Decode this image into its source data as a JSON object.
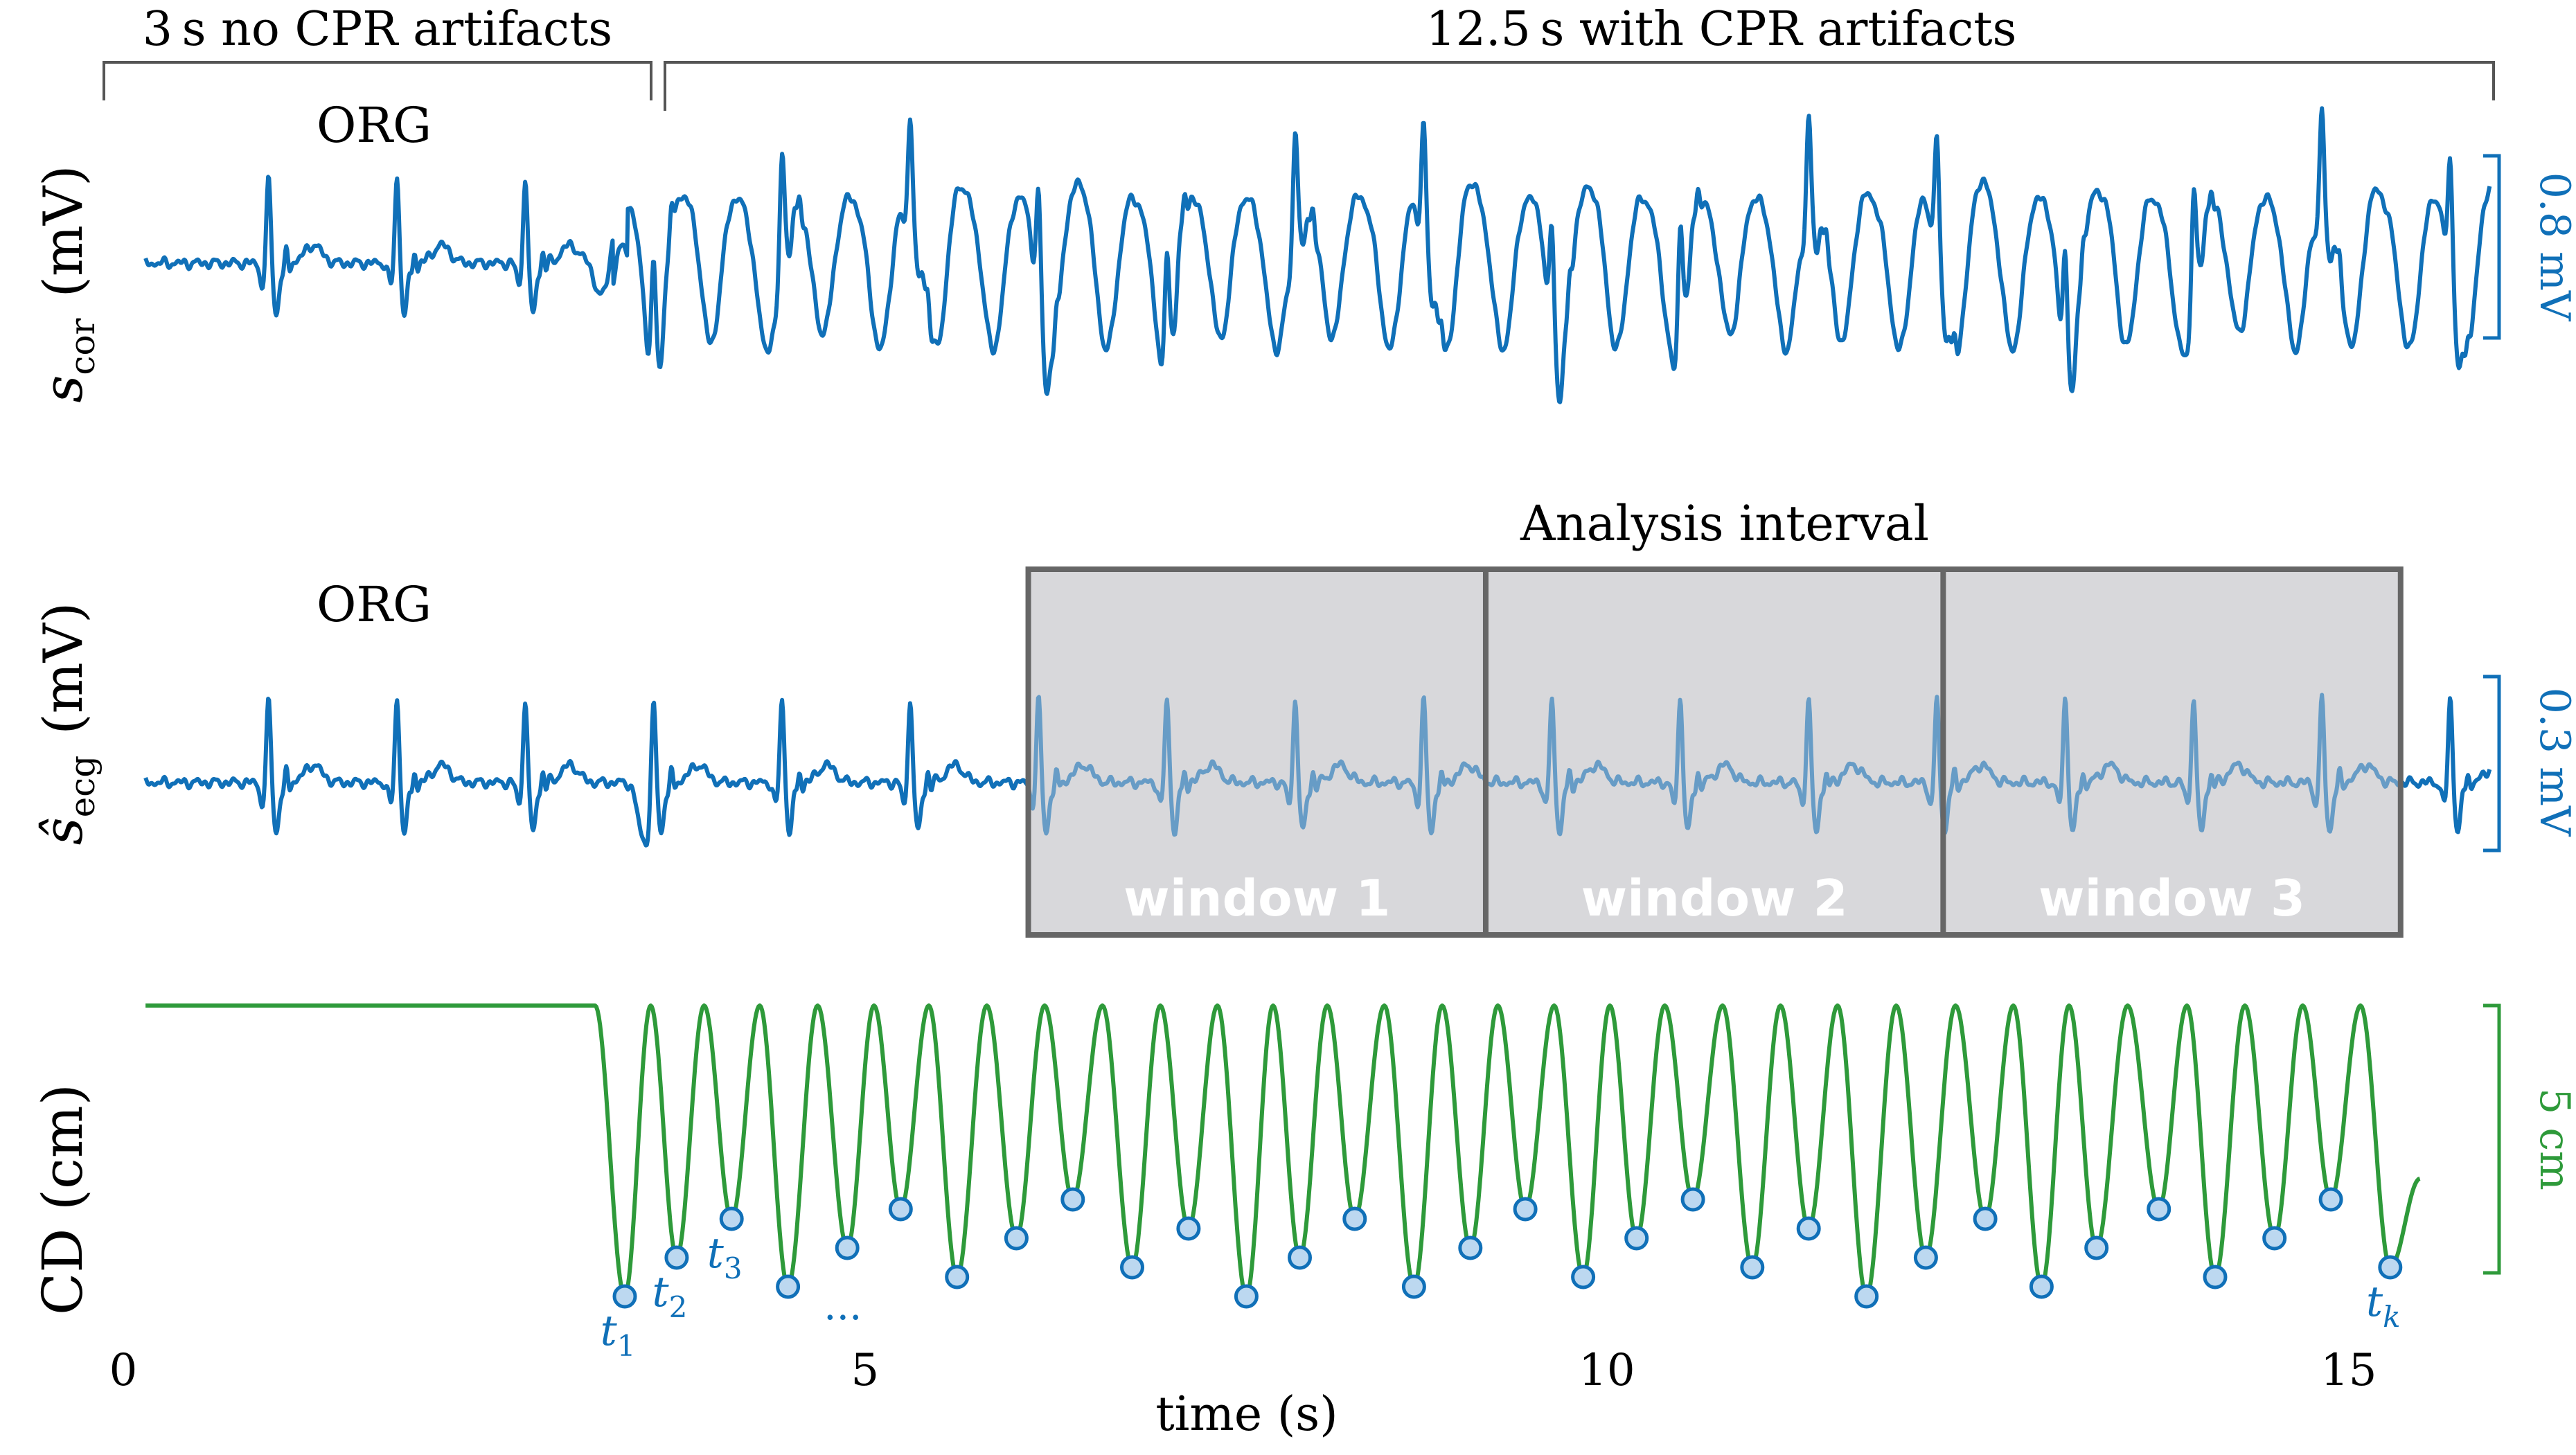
{
  "chart_data": {
    "type": "line",
    "segment_labels": {
      "pre": "3 s no CPR artifacts",
      "post": "12.5 s with CPR artifacts"
    },
    "panels": [
      {
        "id": "scor",
        "ylabel": "s",
        "ylabel_sub": "cor",
        "ylabel_unit": "(mV)",
        "rhythm_label": "ORG",
        "scale_label": "0.8 mV",
        "color": "#1070b8"
      },
      {
        "id": "secg",
        "ylabel": "ŝ",
        "ylabel_sub": "ecg",
        "ylabel_unit": "(mV)",
        "rhythm_label": "ORG",
        "scale_label": "0.3 mV",
        "color": "#1070b8"
      },
      {
        "id": "cd",
        "ylabel": "CD (cm)",
        "scale_label": "5 cm",
        "color": "#2e9a3a"
      }
    ],
    "analysis": {
      "title": "Analysis interval",
      "x_start": 6.1,
      "x_end": 15.35,
      "windows": [
        "window 1",
        "window 2",
        "window 3"
      ]
    },
    "compressions": {
      "times": [
        3.38,
        3.73,
        4.1,
        4.48,
        4.88,
        5.24,
        5.62,
        6.02,
        6.4,
        6.8,
        7.18,
        7.57,
        7.93,
        8.3,
        8.7,
        9.08,
        9.45,
        9.84,
        10.2,
        10.58,
        10.98,
        11.36,
        11.75,
        12.15,
        12.55,
        12.93,
        13.3,
        13.72,
        14.1,
        14.5,
        14.88,
        15.28
      ],
      "labels": [
        {
          "index": 0,
          "base": "t",
          "sub": "1"
        },
        {
          "index": 1,
          "base": "t",
          "sub": "2"
        },
        {
          "index": 2,
          "base": "t",
          "sub": "3"
        },
        {
          "index": 31,
          "base": "t",
          "sub": "k"
        }
      ],
      "ellipsis": "..."
    },
    "x_axis": {
      "label": "time (s)",
      "range": [
        0,
        16
      ],
      "ticks": [
        0,
        5,
        10,
        15
      ],
      "tick_labels": [
        "0",
        "5",
        "10",
        "15"
      ]
    }
  }
}
